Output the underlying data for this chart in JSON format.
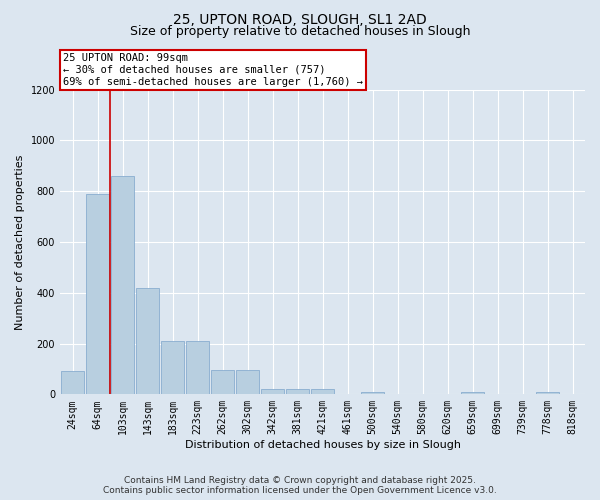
{
  "title1": "25, UPTON ROAD, SLOUGH, SL1 2AD",
  "title2": "Size of property relative to detached houses in Slough",
  "xlabel": "Distribution of detached houses by size in Slough",
  "ylabel": "Number of detached properties",
  "categories": [
    "24sqm",
    "64sqm",
    "103sqm",
    "143sqm",
    "183sqm",
    "223sqm",
    "262sqm",
    "302sqm",
    "342sqm",
    "381sqm",
    "421sqm",
    "461sqm",
    "500sqm",
    "540sqm",
    "580sqm",
    "620sqm",
    "659sqm",
    "699sqm",
    "739sqm",
    "778sqm",
    "818sqm"
  ],
  "values": [
    90,
    790,
    860,
    420,
    210,
    210,
    95,
    95,
    20,
    20,
    20,
    0,
    10,
    0,
    0,
    0,
    10,
    0,
    0,
    10,
    0
  ],
  "bar_color": "#b8cfe0",
  "bar_edge_color": "#89add0",
  "background_color": "#dce6f0",
  "grid_color": "#ffffff",
  "vline_x": 1.5,
  "vline_color": "#cc0000",
  "annotation_title": "25 UPTON ROAD: 99sqm",
  "annotation_line1": "← 30% of detached houses are smaller (757)",
  "annotation_line2": "69% of semi-detached houses are larger (1,760) →",
  "annotation_box_color": "#cc0000",
  "ylim": [
    0,
    1200
  ],
  "yticks": [
    0,
    200,
    400,
    600,
    800,
    1000,
    1200
  ],
  "footer1": "Contains HM Land Registry data © Crown copyright and database right 2025.",
  "footer2": "Contains public sector information licensed under the Open Government Licence v3.0.",
  "title_fontsize": 10,
  "subtitle_fontsize": 9,
  "axis_label_fontsize": 8,
  "tick_fontsize": 7,
  "annotation_fontsize": 7.5,
  "footer_fontsize": 6.5
}
